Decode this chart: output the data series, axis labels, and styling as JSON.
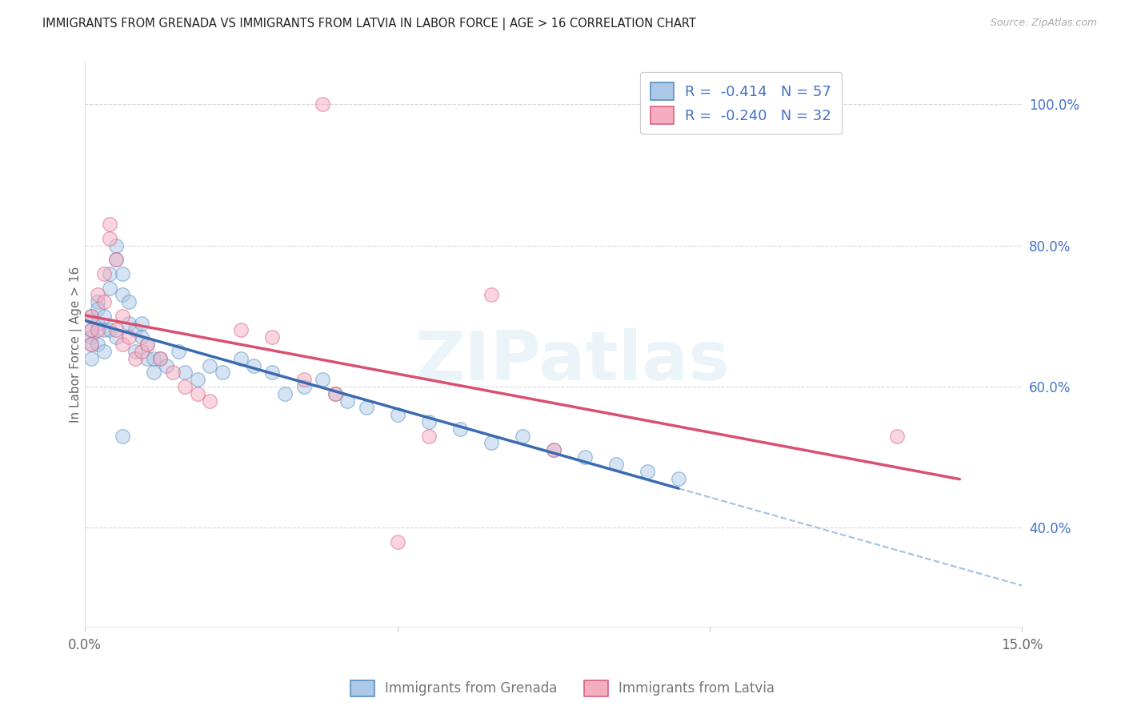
{
  "title": "IMMIGRANTS FROM GRENADA VS IMMIGRANTS FROM LATVIA IN LABOR FORCE | AGE > 16 CORRELATION CHART",
  "source": "Source: ZipAtlas.com",
  "ylabel": "In Labor Force | Age > 16",
  "xlim": [
    0.0,
    0.15
  ],
  "ylim": [
    0.26,
    1.06
  ],
  "xticks": [
    0.0,
    0.05,
    0.1,
    0.15
  ],
  "xticklabels": [
    "0.0%",
    "",
    "",
    "15.0%"
  ],
  "yticks_right": [
    1.0,
    0.8,
    0.6,
    0.4
  ],
  "yticklabels_right": [
    "100.0%",
    "80.0%",
    "60.0%",
    "40.0%"
  ],
  "legend_labels": [
    "Immigrants from Grenada",
    "Immigrants from Latvia"
  ],
  "legend_r_grenada": "-0.414",
  "legend_n_grenada": "57",
  "legend_r_latvia": "-0.240",
  "legend_n_latvia": "32",
  "color_grenada_fill": "#adc9e8",
  "color_grenada_edge": "#5a8fc0",
  "color_latvia_fill": "#f5aec0",
  "color_latvia_edge": "#d96080",
  "color_grenada_line": "#3a6bb0",
  "color_latvia_line": "#d95070",
  "color_dashed": "#90b8e0",
  "color_right_axis": "#4472c4",
  "color_title": "#222222",
  "color_source": "#aaaaaa",
  "color_grid": "#d8d8d8",
  "background": "#ffffff",
  "watermark": "ZIPatlas",
  "circle_size": 160,
  "alpha_scatter": 0.5,
  "grenada_x": [
    0.001,
    0.001,
    0.001,
    0.001,
    0.001,
    0.002,
    0.002,
    0.002,
    0.002,
    0.003,
    0.003,
    0.003,
    0.004,
    0.004,
    0.004,
    0.005,
    0.005,
    0.005,
    0.006,
    0.006,
    0.007,
    0.007,
    0.008,
    0.008,
    0.009,
    0.009,
    0.01,
    0.01,
    0.011,
    0.011,
    0.012,
    0.013,
    0.015,
    0.016,
    0.018,
    0.02,
    0.022,
    0.025,
    0.027,
    0.03,
    0.032,
    0.035,
    0.038,
    0.04,
    0.042,
    0.045,
    0.05,
    0.055,
    0.06,
    0.065,
    0.07,
    0.075,
    0.08,
    0.085,
    0.09,
    0.095,
    0.006
  ],
  "grenada_y": [
    0.67,
    0.68,
    0.7,
    0.64,
    0.66,
    0.72,
    0.69,
    0.66,
    0.71,
    0.68,
    0.65,
    0.7,
    0.74,
    0.76,
    0.68,
    0.78,
    0.8,
    0.67,
    0.73,
    0.76,
    0.69,
    0.72,
    0.68,
    0.65,
    0.67,
    0.69,
    0.66,
    0.64,
    0.64,
    0.62,
    0.64,
    0.63,
    0.65,
    0.62,
    0.61,
    0.63,
    0.62,
    0.64,
    0.63,
    0.62,
    0.59,
    0.6,
    0.61,
    0.59,
    0.58,
    0.57,
    0.56,
    0.55,
    0.54,
    0.52,
    0.53,
    0.51,
    0.5,
    0.49,
    0.48,
    0.47,
    0.53
  ],
  "latvia_x": [
    0.001,
    0.001,
    0.001,
    0.002,
    0.002,
    0.003,
    0.003,
    0.004,
    0.004,
    0.005,
    0.005,
    0.006,
    0.006,
    0.007,
    0.008,
    0.009,
    0.01,
    0.012,
    0.014,
    0.016,
    0.018,
    0.02,
    0.025,
    0.03,
    0.035,
    0.04,
    0.05,
    0.055,
    0.065,
    0.075,
    0.13,
    0.038
  ],
  "latvia_y": [
    0.68,
    0.7,
    0.66,
    0.73,
    0.68,
    0.76,
    0.72,
    0.81,
    0.83,
    0.78,
    0.68,
    0.66,
    0.7,
    0.67,
    0.64,
    0.65,
    0.66,
    0.64,
    0.62,
    0.6,
    0.59,
    0.58,
    0.68,
    0.67,
    0.61,
    0.59,
    0.38,
    0.53,
    0.73,
    0.51,
    0.53,
    1.0
  ],
  "grenada_line_xstart": 0.0,
  "grenada_line_xsolid_end": 0.095,
  "grenada_line_xdash_end": 0.15,
  "latvia_line_xstart": 0.0,
  "latvia_line_xend": 0.14
}
